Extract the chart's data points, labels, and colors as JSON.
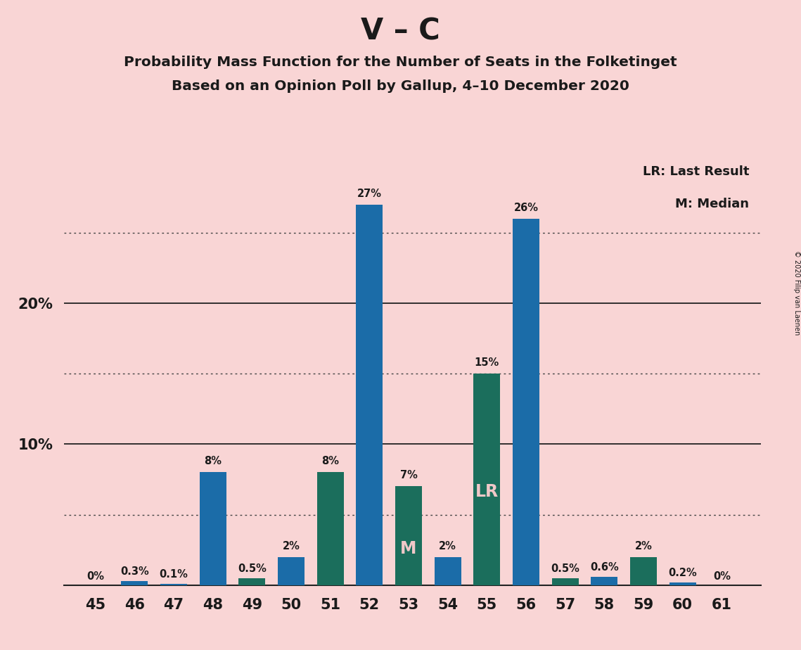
{
  "title_main": "V – C",
  "title_sub1": "Probability Mass Function for the Number of Seats in the Folketinget",
  "title_sub2": "Based on an Opinion Poll by Gallup, 4–10 December 2020",
  "copyright": "© 2020 Filip van Laenen",
  "legend_lr": "LR: Last Result",
  "legend_m": "M: Median",
  "background_color": "#f9d5d5",
  "bar_color_blue": "#1b6ca8",
  "bar_color_green": "#1b6e5c",
  "seats": [
    45,
    46,
    47,
    48,
    49,
    50,
    51,
    52,
    53,
    54,
    55,
    56,
    57,
    58,
    59,
    60,
    61
  ],
  "values": [
    0.0,
    0.3,
    0.1,
    8.0,
    0.5,
    2.0,
    8.0,
    27.0,
    7.0,
    2.0,
    15.0,
    26.0,
    0.5,
    0.6,
    2.0,
    0.2,
    0.0
  ],
  "labels": [
    "0%",
    "0.3%",
    "0.1%",
    "8%",
    "0.5%",
    "2%",
    "8%",
    "27%",
    "7%",
    "2%",
    "15%",
    "26%",
    "0.5%",
    "0.6%",
    "2%",
    "0.2%",
    "0%"
  ],
  "bar_types": [
    "blue",
    "blue",
    "blue",
    "blue",
    "green",
    "blue",
    "green",
    "blue",
    "green",
    "blue",
    "green",
    "blue",
    "green",
    "blue",
    "green",
    "blue",
    "blue"
  ],
  "median_seat": 53,
  "lr_seat": 55,
  "ylim": [
    0,
    30
  ],
  "solid_lines": [
    10,
    20
  ],
  "dotted_lines": [
    5,
    15,
    25
  ]
}
